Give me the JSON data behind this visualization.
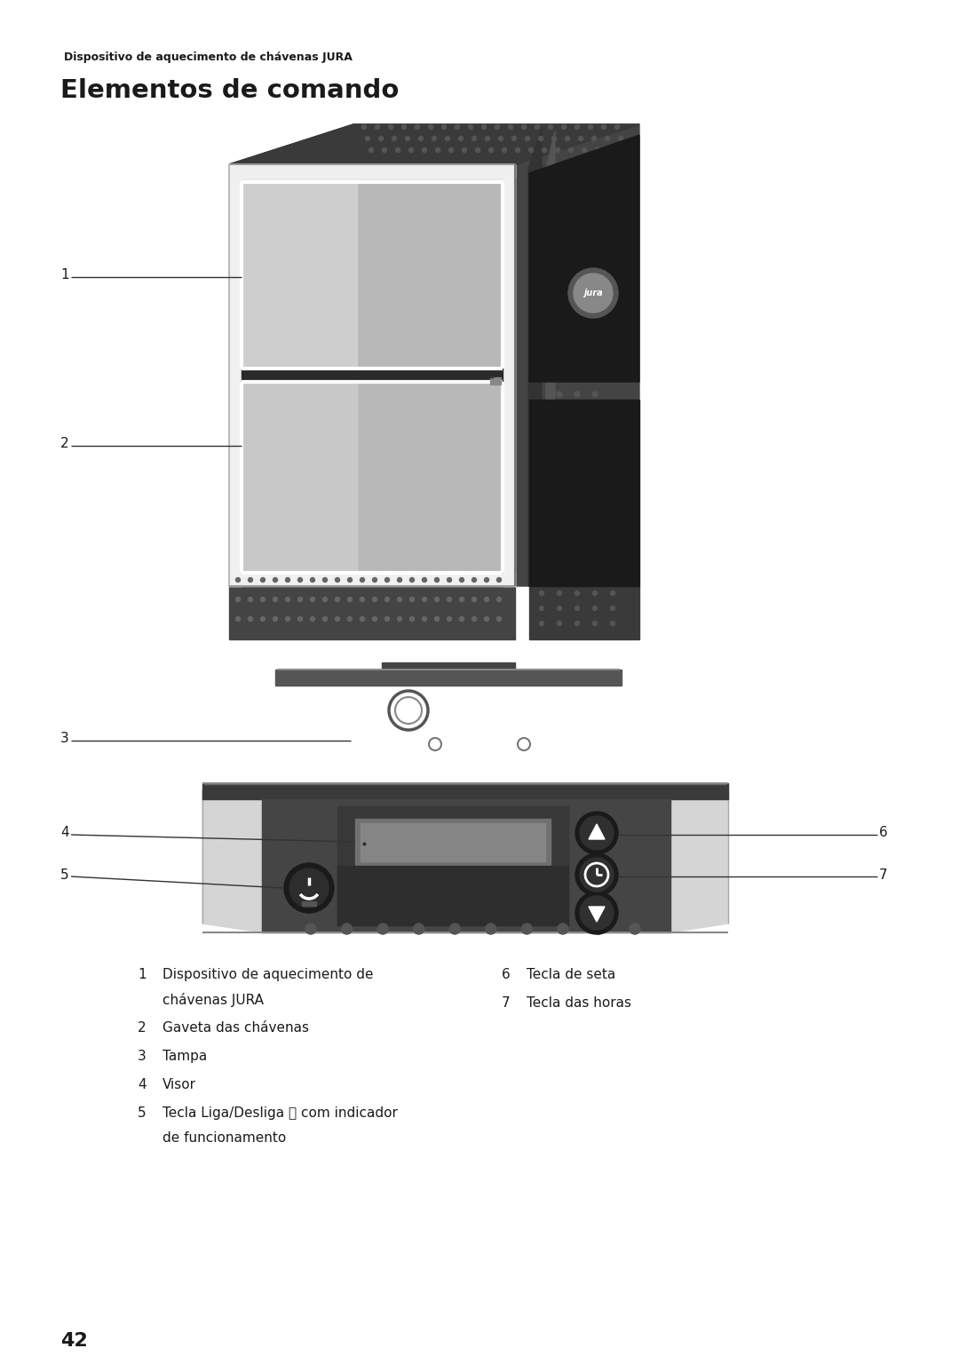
{
  "page_bg": "#ffffff",
  "header_text": "Dispositivo de aquecimento de chávenas JURA",
  "title": "Elementos de comando",
  "page_number": "42",
  "font_color": "#1a1a1a",
  "line_color": "#333333",
  "legend_items_left": [
    {
      "num": "1",
      "text_line1": "Dispositivo de aquecimento de",
      "text_line2": "chávenas JURA"
    },
    {
      "num": "2",
      "text_line1": "Gaveta das chávenas",
      "text_line2": ""
    },
    {
      "num": "3",
      "text_line1": "Tampa",
      "text_line2": ""
    },
    {
      "num": "4",
      "text_line1": "Visor",
      "text_line2": ""
    },
    {
      "num": "5",
      "text_line1": "Tecla Liga/Desliga ⏻ com indicador",
      "text_line2": "de funcionamento"
    }
  ],
  "legend_items_right": [
    {
      "num": "6",
      "text_line1": "Tecla de seta",
      "text_line2": ""
    },
    {
      "num": "7",
      "text_line1": "Tecla das horas",
      "text_line2": ""
    }
  ]
}
